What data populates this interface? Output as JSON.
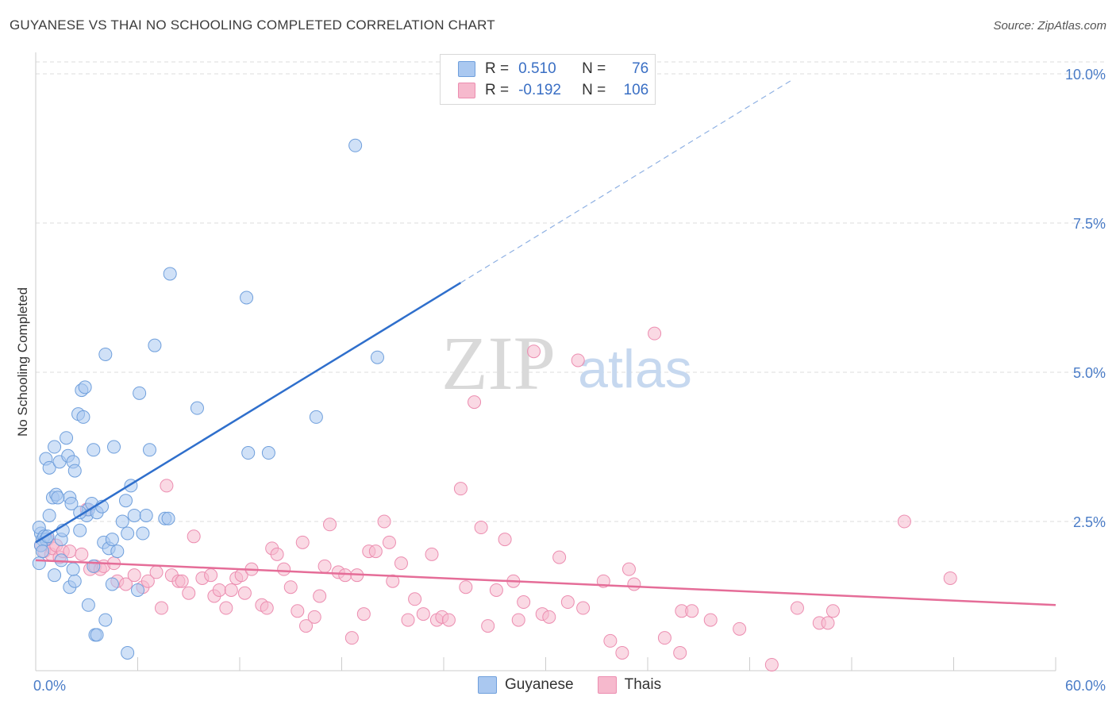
{
  "title": "GUYANESE VS THAI NO SCHOOLING COMPLETED CORRELATION CHART",
  "source": "Source: ZipAtlas.com",
  "watermark": {
    "zip": "ZIP",
    "atlas": "atlas"
  },
  "legend": {
    "rows": [
      {
        "r_label": "R =",
        "r_value": "0.510",
        "n_label": "N =",
        "n_value": "76"
      },
      {
        "r_label": "R =",
        "r_value": "-0.192",
        "n_label": "N =",
        "n_value": "106"
      }
    ]
  },
  "bottom_legend": {
    "items": [
      "Guyanese",
      "Thais"
    ]
  },
  "colors": {
    "guyanese_fill": "#aac8f0",
    "guyanese_stroke": "#6f9fdc",
    "guyanese_line": "#2f6fcc",
    "thai_fill": "#f6b9cd",
    "thai_stroke": "#ec8db0",
    "thai_line": "#e56d98",
    "grid": "#dddddd",
    "tick_text": "#4a7cc7"
  },
  "chart_data": {
    "type": "scatter",
    "title": "GUYANESE VS THAI NO SCHOOLING COMPLETED CORRELATION CHART",
    "xlabel": "",
    "ylabel": "No Schooling Completed",
    "xlim": [
      0,
      60
    ],
    "ylim": [
      0,
      10.2
    ],
    "x_tick_labels": [
      "0.0%",
      "60.0%"
    ],
    "y_ticks": [
      2.5,
      5.0,
      7.5,
      10.0
    ],
    "y_tick_labels": [
      "2.5%",
      "5.0%",
      "7.5%",
      "10.0%"
    ],
    "grid": "horizontal dashed",
    "legend_placement": "top-center",
    "series": [
      {
        "name": "Guyanese",
        "r": 0.51,
        "n": 76,
        "trend": {
          "x0": 0.0,
          "y0": 2.15,
          "x1": 25.0,
          "y1": 6.5,
          "dashed_to_x": 44.5,
          "dashed_to_y": 9.9
        },
        "points": [
          [
            0.3,
            2.3
          ],
          [
            0.4,
            2.2
          ],
          [
            0.2,
            2.4
          ],
          [
            0.5,
            2.25
          ],
          [
            0.6,
            2.2
          ],
          [
            0.3,
            2.1
          ],
          [
            0.2,
            1.8
          ],
          [
            0.7,
            2.25
          ],
          [
            0.4,
            2.0
          ],
          [
            0.8,
            2.6
          ],
          [
            0.6,
            3.55
          ],
          [
            0.8,
            3.4
          ],
          [
            1.0,
            2.9
          ],
          [
            1.2,
            2.95
          ],
          [
            1.1,
            3.75
          ],
          [
            1.4,
            3.5
          ],
          [
            1.5,
            2.2
          ],
          [
            1.6,
            2.35
          ],
          [
            1.8,
            3.9
          ],
          [
            1.9,
            3.6
          ],
          [
            2.0,
            2.9
          ],
          [
            2.1,
            2.8
          ],
          [
            2.2,
            3.5
          ],
          [
            2.3,
            3.35
          ],
          [
            2.5,
            4.3
          ],
          [
            2.8,
            4.25
          ],
          [
            2.7,
            4.7
          ],
          [
            2.9,
            4.75
          ],
          [
            3.0,
            2.6
          ],
          [
            3.1,
            2.7
          ],
          [
            3.3,
            2.8
          ],
          [
            3.4,
            3.7
          ],
          [
            3.6,
            2.65
          ],
          [
            3.9,
            2.75
          ],
          [
            4.0,
            2.15
          ],
          [
            4.1,
            5.3
          ],
          [
            4.3,
            2.05
          ],
          [
            4.5,
            2.2
          ],
          [
            4.6,
            3.75
          ],
          [
            4.8,
            2.0
          ],
          [
            5.1,
            2.5
          ],
          [
            5.3,
            2.85
          ],
          [
            5.6,
            3.1
          ],
          [
            5.8,
            2.6
          ],
          [
            6.1,
            4.65
          ],
          [
            6.3,
            2.3
          ],
          [
            6.5,
            2.6
          ],
          [
            6.7,
            3.7
          ],
          [
            7.0,
            5.45
          ],
          [
            7.6,
            2.55
          ],
          [
            7.8,
            2.55
          ],
          [
            7.9,
            6.65
          ],
          [
            9.5,
            4.4
          ],
          [
            12.4,
            6.25
          ],
          [
            12.5,
            3.65
          ],
          [
            13.7,
            3.65
          ],
          [
            16.5,
            4.25
          ],
          [
            18.8,
            8.8
          ],
          [
            20.1,
            5.25
          ],
          [
            1.1,
            1.6
          ],
          [
            1.5,
            1.85
          ],
          [
            2.0,
            1.4
          ],
          [
            2.3,
            1.5
          ],
          [
            2.2,
            1.7
          ],
          [
            2.6,
            2.65
          ],
          [
            3.1,
            1.1
          ],
          [
            3.4,
            1.75
          ],
          [
            3.5,
            0.6
          ],
          [
            3.6,
            0.6
          ],
          [
            4.1,
            0.85
          ],
          [
            4.5,
            1.45
          ],
          [
            5.4,
            2.3
          ],
          [
            6.0,
            1.35
          ],
          [
            5.4,
            0.3
          ],
          [
            2.6,
            2.35
          ],
          [
            1.3,
            2.9
          ]
        ]
      },
      {
        "name": "Thais",
        "r": -0.192,
        "n": 106,
        "trend": {
          "x0": 0.0,
          "y0": 1.85,
          "x1": 60.0,
          "y1": 1.1
        },
        "points": [
          [
            0.3,
            2.1
          ],
          [
            0.5,
            2.0
          ],
          [
            0.7,
            2.2
          ],
          [
            0.9,
            1.95
          ],
          [
            1.0,
            2.05
          ],
          [
            1.2,
            2.1
          ],
          [
            1.4,
            1.9
          ],
          [
            1.6,
            2.0
          ],
          [
            2.0,
            2.0
          ],
          [
            2.7,
            1.95
          ],
          [
            3.0,
            2.7
          ],
          [
            3.2,
            1.7
          ],
          [
            3.5,
            1.75
          ],
          [
            3.8,
            1.7
          ],
          [
            4.0,
            1.75
          ],
          [
            4.6,
            1.8
          ],
          [
            4.8,
            1.5
          ],
          [
            5.3,
            1.45
          ],
          [
            5.8,
            1.6
          ],
          [
            6.3,
            1.4
          ],
          [
            6.6,
            1.5
          ],
          [
            7.1,
            1.65
          ],
          [
            7.4,
            1.05
          ],
          [
            7.7,
            3.1
          ],
          [
            8.0,
            1.6
          ],
          [
            8.4,
            1.5
          ],
          [
            8.6,
            1.5
          ],
          [
            9.0,
            1.3
          ],
          [
            9.3,
            2.25
          ],
          [
            9.8,
            1.55
          ],
          [
            10.3,
            1.6
          ],
          [
            10.5,
            1.25
          ],
          [
            10.8,
            1.35
          ],
          [
            11.2,
            1.05
          ],
          [
            11.5,
            1.35
          ],
          [
            11.8,
            1.55
          ],
          [
            12.1,
            1.6
          ],
          [
            12.3,
            1.3
          ],
          [
            12.7,
            1.7
          ],
          [
            13.3,
            1.1
          ],
          [
            13.6,
            1.05
          ],
          [
            13.9,
            2.05
          ],
          [
            14.2,
            1.95
          ],
          [
            14.6,
            1.7
          ],
          [
            15.0,
            1.4
          ],
          [
            15.4,
            1.0
          ],
          [
            15.7,
            2.15
          ],
          [
            15.9,
            0.75
          ],
          [
            16.4,
            0.9
          ],
          [
            16.7,
            1.25
          ],
          [
            17.0,
            1.75
          ],
          [
            17.3,
            2.45
          ],
          [
            17.8,
            1.65
          ],
          [
            18.2,
            1.6
          ],
          [
            18.6,
            0.55
          ],
          [
            18.9,
            1.6
          ],
          [
            19.3,
            0.95
          ],
          [
            19.6,
            2.0
          ],
          [
            20.0,
            2.0
          ],
          [
            20.5,
            2.5
          ],
          [
            20.8,
            2.15
          ],
          [
            21.0,
            1.5
          ],
          [
            21.5,
            1.8
          ],
          [
            21.9,
            0.85
          ],
          [
            22.3,
            1.2
          ],
          [
            22.8,
            0.95
          ],
          [
            23.3,
            1.95
          ],
          [
            23.6,
            0.85
          ],
          [
            23.9,
            0.9
          ],
          [
            24.3,
            0.85
          ],
          [
            25.0,
            3.05
          ],
          [
            25.3,
            1.4
          ],
          [
            25.8,
            4.5
          ],
          [
            26.2,
            2.4
          ],
          [
            26.6,
            0.75
          ],
          [
            27.1,
            1.35
          ],
          [
            27.6,
            2.2
          ],
          [
            28.1,
            1.5
          ],
          [
            28.4,
            0.85
          ],
          [
            28.7,
            1.15
          ],
          [
            29.3,
            5.35
          ],
          [
            29.8,
            0.95
          ],
          [
            30.2,
            0.9
          ],
          [
            30.8,
            1.9
          ],
          [
            31.3,
            1.15
          ],
          [
            31.9,
            5.2
          ],
          [
            32.2,
            1.05
          ],
          [
            33.4,
            1.5
          ],
          [
            33.8,
            0.5
          ],
          [
            34.5,
            0.3
          ],
          [
            34.9,
            1.7
          ],
          [
            35.2,
            1.45
          ],
          [
            36.4,
            5.65
          ],
          [
            37.0,
            0.55
          ],
          [
            37.9,
            0.3
          ],
          [
            38.0,
            1.0
          ],
          [
            38.6,
            1.0
          ],
          [
            39.7,
            0.85
          ],
          [
            41.4,
            0.7
          ],
          [
            43.3,
            0.1
          ],
          [
            44.8,
            1.05
          ],
          [
            46.1,
            0.8
          ],
          [
            46.6,
            0.8
          ],
          [
            46.9,
            1.0
          ],
          [
            51.1,
            2.5
          ],
          [
            53.8,
            1.55
          ]
        ]
      }
    ]
  }
}
